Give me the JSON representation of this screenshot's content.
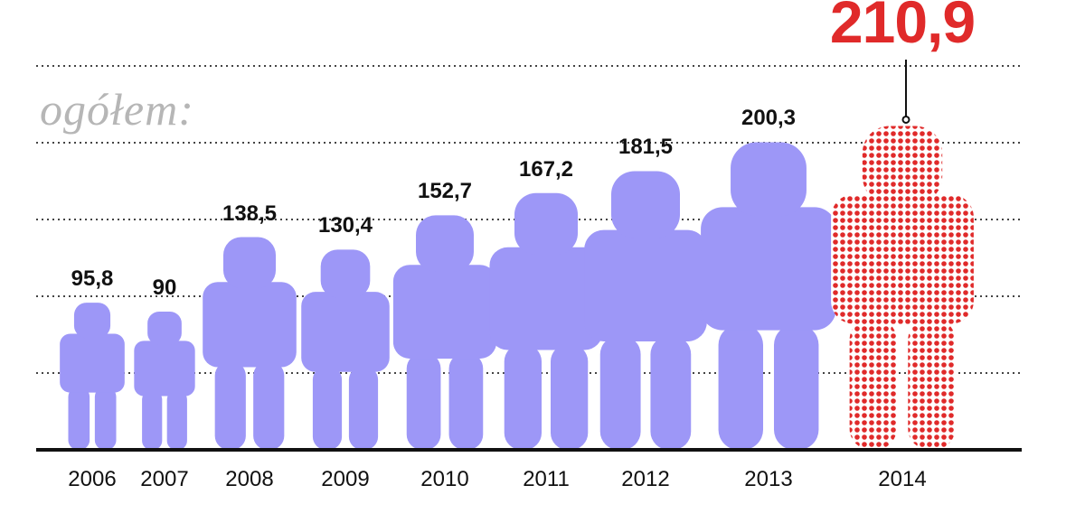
{
  "chart_data": {
    "type": "bar",
    "subtitle": "ogółem:",
    "categories": [
      "2006",
      "2007",
      "2008",
      "2009",
      "2010",
      "2011",
      "2012",
      "2013",
      "2014"
    ],
    "values": [
      95.8,
      90,
      138.5,
      130.4,
      152.7,
      167.2,
      181.5,
      200.3,
      210.9
    ],
    "value_labels": [
      "95,8",
      "90",
      "138,5",
      "130,4",
      "152,7",
      "167,2",
      "181,5",
      "200,3",
      "210,9"
    ],
    "highlight_category": "2014",
    "ylim": [
      0,
      235
    ],
    "grid": true,
    "mark_shape": "person-silhouette",
    "colors": {
      "bar": "#9d97f7",
      "highlight": "#e02a2a",
      "grid": "#444444",
      "axis": "#111111",
      "subtitle": "#b6b6b6"
    }
  }
}
